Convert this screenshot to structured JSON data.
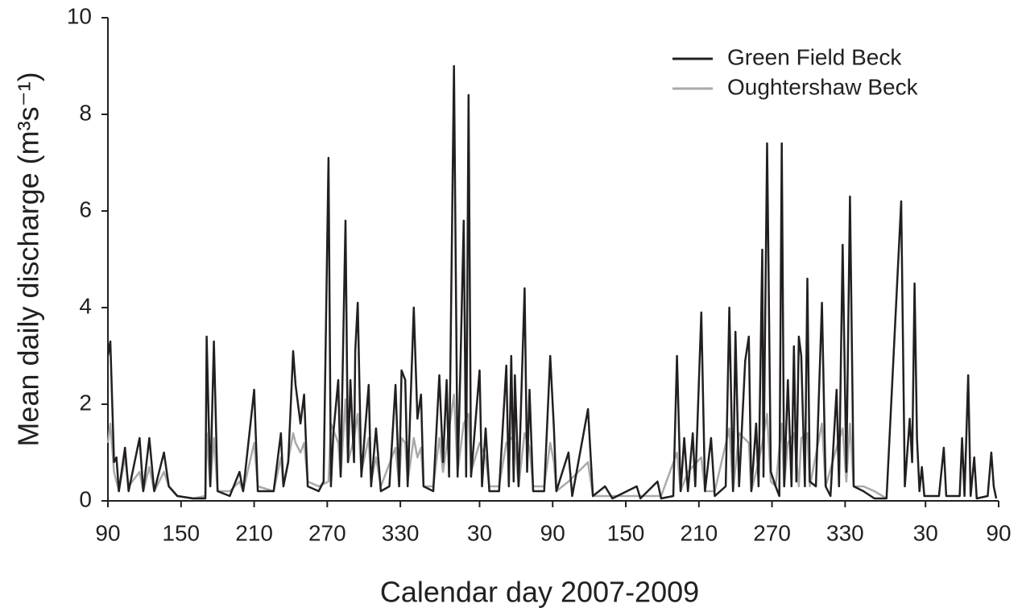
{
  "chart_data": {
    "type": "line",
    "xlabel": "Calendar day 2007-2009",
    "ylabel": "Mean daily discharge (m³s⁻¹)",
    "xlim": [
      0,
      731
    ],
    "ylim": [
      0,
      10
    ],
    "xticks": [
      {
        "value": 0,
        "label": "90"
      },
      {
        "value": 60,
        "label": "150"
      },
      {
        "value": 120,
        "label": "210"
      },
      {
        "value": 180,
        "label": "270"
      },
      {
        "value": 240,
        "label": "330"
      },
      {
        "value": 305,
        "label": "30"
      },
      {
        "value": 365,
        "label": "90"
      },
      {
        "value": 425,
        "label": "150"
      },
      {
        "value": 485,
        "label": "210"
      },
      {
        "value": 545,
        "label": "270"
      },
      {
        "value": 605,
        "label": "330"
      },
      {
        "value": 671,
        "label": "30"
      },
      {
        "value": 731,
        "label": "90"
      }
    ],
    "yticks": [
      0,
      2,
      4,
      6,
      8,
      10
    ],
    "legend": "upper right",
    "series": [
      {
        "name": "Green Field Beck",
        "color": "#231f20",
        "x": [
          0,
          2,
          5,
          7,
          9,
          14,
          17,
          26,
          29,
          34,
          38,
          46,
          50,
          57,
          70,
          80,
          81,
          84,
          87,
          90,
          100,
          108,
          111,
          120,
          123,
          136,
          142,
          144,
          148,
          152,
          154,
          158,
          161,
          164,
          173,
          177,
          181,
          183,
          185,
          189,
          191,
          195,
          197,
          199,
          202,
          203,
          205,
          208,
          214,
          216,
          220,
          224,
          231,
          236,
          239,
          241,
          244,
          246,
          251,
          254,
          257,
          259,
          267,
          272,
          275,
          278,
          280,
          284,
          287,
          289,
          292,
          294,
          296,
          298,
          305,
          307,
          310,
          313,
          321,
          327,
          329,
          331,
          333,
          334,
          337,
          342,
          344,
          346,
          349,
          358,
          363,
          366,
          368,
          378,
          381,
          394,
          398,
          408,
          414,
          434,
          437,
          451,
          454,
          464,
          467,
          470,
          473,
          476,
          480,
          482,
          487,
          490,
          495,
          498,
          507,
          510,
          513,
          515,
          518,
          523,
          526,
          528,
          532,
          534,
          537,
          538,
          541,
          544,
          548,
          551,
          553,
          555,
          558,
          561,
          563,
          565,
          567,
          569,
          572,
          574,
          576,
          581,
          586,
          589,
          593,
          598,
          600,
          603,
          606,
          609,
          612,
          620,
          629,
          639,
          651,
          654,
          658,
          660,
          662,
          664,
          666,
          668,
          670,
          682,
          686,
          688,
          699,
          701,
          703,
          706,
          708,
          711,
          713,
          722,
          725,
          727,
          729
        ],
        "values": [
          3.0,
          3.3,
          0.8,
          0.9,
          0.2,
          1.1,
          0.2,
          1.3,
          0.2,
          1.3,
          0.2,
          1.0,
          0.3,
          0.1,
          0.05,
          0.05,
          3.4,
          0.3,
          3.3,
          0.2,
          0.1,
          0.6,
          0.2,
          2.3,
          0.2,
          0.2,
          1.4,
          0.3,
          0.8,
          3.1,
          2.4,
          1.6,
          2.2,
          0.3,
          0.2,
          0.4,
          7.1,
          0.3,
          1.4,
          2.5,
          0.5,
          5.8,
          0.8,
          2.5,
          0.8,
          3.1,
          4.1,
          0.5,
          2.4,
          0.3,
          1.5,
          0.2,
          0.3,
          2.4,
          0.3,
          2.7,
          2.5,
          0.3,
          4.0,
          1.7,
          2.2,
          0.3,
          0.2,
          2.6,
          0.8,
          2.5,
          0.5,
          9.0,
          0.5,
          2.5,
          5.8,
          0.5,
          8.4,
          0.5,
          2.7,
          0.3,
          1.5,
          0.2,
          0.2,
          2.8,
          0.3,
          3.0,
          0.4,
          2.6,
          0.3,
          4.4,
          0.6,
          2.3,
          0.2,
          0.2,
          3.0,
          1.5,
          0.2,
          1.0,
          0.1,
          1.9,
          0.1,
          0.3,
          0.05,
          0.3,
          0.05,
          0.4,
          0.05,
          0.1,
          3.0,
          0.2,
          1.3,
          0.2,
          1.4,
          0.3,
          3.9,
          0.2,
          1.3,
          0.1,
          0.3,
          4.0,
          0.2,
          3.5,
          0.3,
          2.9,
          3.4,
          0.2,
          1.6,
          0.3,
          5.2,
          0.5,
          7.4,
          0.6,
          0.3,
          0.1,
          7.4,
          0.3,
          2.5,
          0.3,
          3.2,
          0.4,
          3.4,
          3.0,
          0.3,
          4.6,
          0.4,
          0.3,
          4.1,
          0.3,
          0.1,
          2.3,
          0.3,
          5.3,
          0.6,
          6.3,
          0.3,
          0.2,
          0.05,
          0.05,
          6.2,
          0.3,
          1.7,
          0.8,
          4.5,
          1.3,
          0.2,
          0.7,
          0.1,
          0.1,
          1.1,
          0.1,
          0.1,
          1.3,
          0.1,
          2.6,
          0.1,
          0.9,
          0.05,
          0.1,
          1.0,
          0.3,
          0.05
        ]
      },
      {
        "name": "Oughtershaw Beck",
        "color": "#a7a9ac",
        "x": [
          0,
          2,
          5,
          9,
          14,
          17,
          26,
          29,
          34,
          38,
          46,
          50,
          57,
          70,
          80,
          81,
          84,
          87,
          90,
          100,
          108,
          111,
          120,
          123,
          136,
          142,
          144,
          152,
          154,
          158,
          161,
          164,
          173,
          181,
          183,
          189,
          191,
          195,
          197,
          202,
          205,
          208,
          214,
          216,
          220,
          224,
          236,
          239,
          241,
          244,
          246,
          251,
          254,
          257,
          259,
          267,
          272,
          275,
          284,
          287,
          292,
          296,
          298,
          305,
          310,
          313,
          321,
          327,
          331,
          334,
          337,
          342,
          346,
          349,
          358,
          363,
          366,
          368,
          378,
          394,
          398,
          414,
          437,
          454,
          467,
          470,
          476,
          487,
          490,
          498,
          510,
          513,
          518,
          526,
          528,
          534,
          537,
          541,
          544,
          548,
          553,
          555,
          558,
          563,
          567,
          569,
          574,
          576,
          586,
          589,
          598,
          603,
          606,
          609,
          612,
          620,
          629,
          639
        ],
        "values": [
          1.2,
          1.6,
          0.6,
          0.2,
          0.9,
          0.3,
          0.6,
          0.2,
          0.7,
          0.2,
          0.6,
          0.3,
          0.1,
          0.05,
          0.1,
          1.4,
          0.3,
          1.3,
          0.2,
          0.2,
          0.4,
          0.2,
          1.2,
          0.3,
          0.2,
          0.9,
          0.3,
          1.4,
          1.2,
          1.0,
          1.2,
          0.4,
          0.3,
          0.4,
          1.6,
          1.2,
          0.5,
          2.1,
          0.8,
          1.3,
          1.8,
          0.6,
          1.3,
          0.4,
          0.9,
          0.3,
          1.1,
          0.3,
          1.3,
          1.2,
          0.4,
          1.3,
          0.9,
          1.1,
          0.3,
          0.3,
          1.3,
          0.6,
          2.2,
          0.6,
          1.6,
          1.8,
          0.6,
          1.2,
          0.9,
          0.3,
          0.3,
          1.2,
          1.3,
          1.2,
          0.3,
          1.4,
          1.1,
          0.3,
          0.3,
          1.2,
          0.8,
          0.2,
          0.4,
          0.8,
          0.1,
          0.1,
          0.1,
          0.1,
          1.0,
          0.2,
          0.6,
          0.9,
          0.2,
          0.2,
          1.5,
          0.2,
          1.4,
          1.2,
          0.2,
          0.8,
          1.2,
          1.8,
          0.4,
          0.3,
          1.6,
          0.3,
          1.2,
          1.4,
          0.3,
          1.3,
          1.4,
          0.3,
          1.6,
          0.3,
          1.1,
          1.5,
          0.4,
          1.6,
          0.3,
          0.3,
          0.2,
          0.05
        ]
      }
    ]
  }
}
